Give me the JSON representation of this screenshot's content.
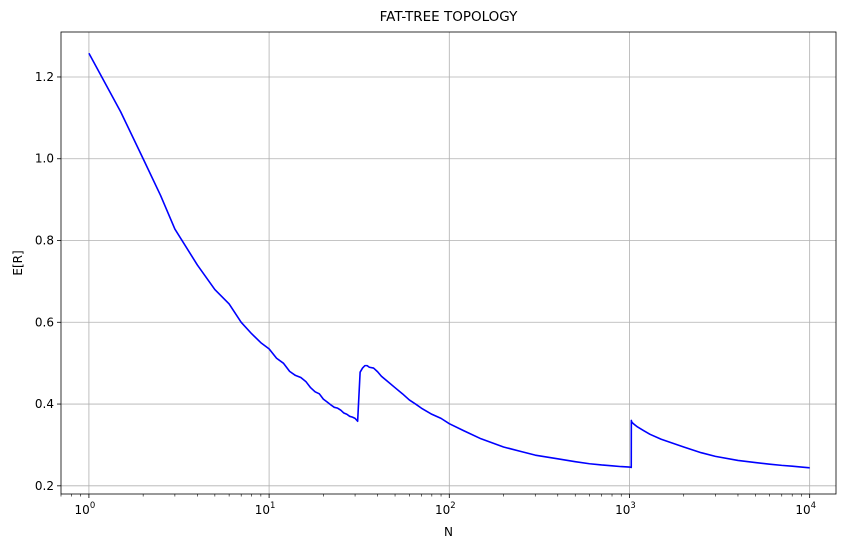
{
  "chart_data": {
    "type": "line",
    "title": "FAT-TREE TOPOLOGY",
    "xlabel": "N",
    "ylabel": "E[R]",
    "xscale": "log",
    "xlim": [
      0.7,
      14000
    ],
    "ylim": [
      0.18,
      1.31
    ],
    "grid": true,
    "x_ticks": [
      {
        "value": 1,
        "base": "10",
        "exp": "0"
      },
      {
        "value": 10,
        "base": "10",
        "exp": "1"
      },
      {
        "value": 100,
        "base": "10",
        "exp": "2"
      },
      {
        "value": 1000,
        "base": "10",
        "exp": "3"
      },
      {
        "value": 10000,
        "base": "10",
        "exp": "4"
      }
    ],
    "y_ticks": [
      0.2,
      0.4,
      0.6,
      0.8,
      1.0,
      1.2
    ],
    "y_tick_labels": [
      "0.2",
      "0.4",
      "0.6",
      "0.8",
      "1.0",
      "1.2"
    ],
    "series": [
      {
        "color": "#0000ff",
        "x": [
          1,
          1.5,
          2,
          2.5,
          3,
          4,
          5,
          6,
          7,
          8,
          9,
          10,
          11,
          12,
          13,
          14,
          15,
          16,
          17,
          18,
          19,
          20,
          21,
          22,
          23,
          24,
          25,
          26,
          27,
          28,
          29,
          30,
          31,
          32,
          33,
          34,
          35,
          36,
          38,
          40,
          42,
          45,
          50,
          55,
          60,
          65,
          70,
          80,
          90,
          100,
          120,
          150,
          200,
          250,
          300,
          400,
          500,
          600,
          700,
          800,
          900,
          1000,
          1023,
          1024,
          1026,
          1030,
          1050,
          1100,
          1200,
          1300,
          1500,
          2000,
          2500,
          3000,
          4000,
          5000,
          6000,
          7000,
          8000,
          9000,
          10000
        ],
        "y": [
          1.258,
          1.115,
          1.0,
          0.91,
          0.828,
          0.74,
          0.68,
          0.645,
          0.6,
          0.572,
          0.55,
          0.535,
          0.512,
          0.5,
          0.48,
          0.47,
          0.465,
          0.455,
          0.44,
          0.43,
          0.425,
          0.412,
          0.405,
          0.398,
          0.392,
          0.39,
          0.385,
          0.378,
          0.375,
          0.37,
          0.368,
          0.365,
          0.358,
          0.478,
          0.488,
          0.494,
          0.494,
          0.49,
          0.488,
          0.479,
          0.468,
          0.457,
          0.44,
          0.425,
          0.41,
          0.4,
          0.39,
          0.375,
          0.365,
          0.352,
          0.335,
          0.315,
          0.295,
          0.284,
          0.275,
          0.266,
          0.259,
          0.254,
          0.251,
          0.249,
          0.247,
          0.246,
          0.245,
          0.36,
          0.358,
          0.356,
          0.352,
          0.345,
          0.335,
          0.326,
          0.314,
          0.295,
          0.281,
          0.272,
          0.262,
          0.257,
          0.253,
          0.25,
          0.248,
          0.246,
          0.244
        ]
      }
    ]
  }
}
